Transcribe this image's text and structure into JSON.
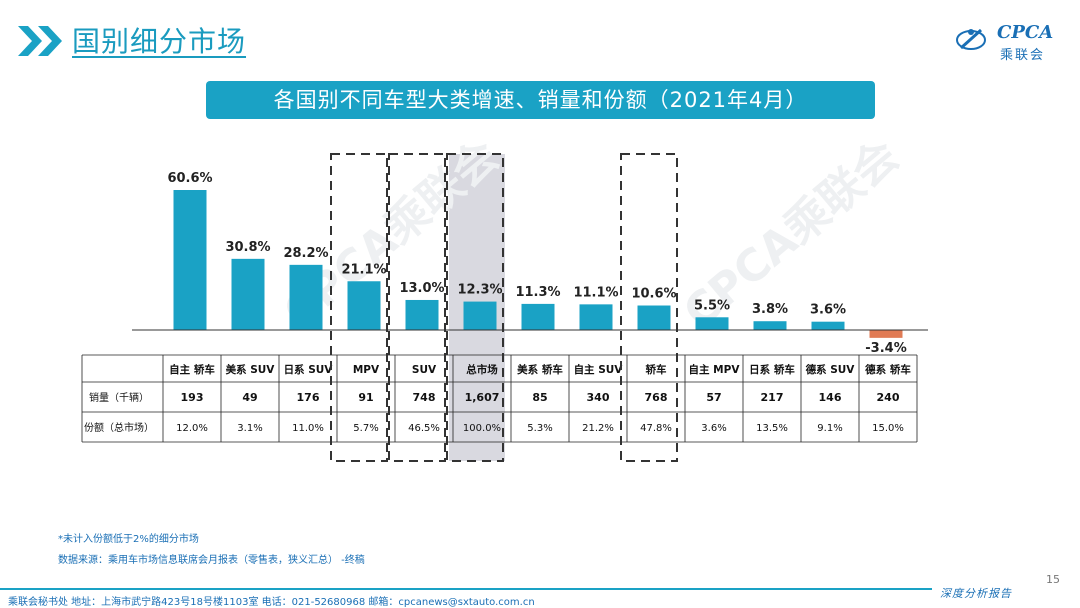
{
  "header": {
    "title": "国别细分市场",
    "logo_text": "CPCA",
    "logo_sub": "乘联会"
  },
  "banner": {
    "title": "各国别不同车型大类增速、销量和份额（2021年4月）"
  },
  "colors": {
    "accent": "#1aa2c5",
    "bar_positive": "#1aa2c5",
    "bar_negative": "#e07b55",
    "highlight": "#d9d9e0"
  },
  "watermark": "CPCA乘联会",
  "chart_data": {
    "type": "bar",
    "title": "各国别不同车型大类增速、销量和份额（2021年4月）",
    "categories": [
      "自主 轿车",
      "美系 SUV",
      "日系 SUV",
      "MPV",
      "SUV",
      "总市场",
      "美系 轿车",
      "自主 SUV",
      "轿车",
      "自主 MPV",
      "日系 轿车",
      "德系 SUV",
      "德系 轿车"
    ],
    "values": [
      60.6,
      30.8,
      28.2,
      21.1,
      13.0,
      12.3,
      11.3,
      11.1,
      10.6,
      5.5,
      3.8,
      3.6,
      -3.4
    ],
    "value_labels": [
      "60.6%",
      "30.8%",
      "28.2%",
      "21.1%",
      "13.0%",
      "12.3%",
      "11.3%",
      "11.1%",
      "10.6%",
      "5.5%",
      "3.8%",
      "3.6%",
      "-3.4%"
    ],
    "highlighted": [
      "MPV",
      "SUV",
      "总市场",
      "轿车"
    ],
    "shaded": [
      "总市场"
    ],
    "ylim": [
      -5,
      65
    ],
    "table": {
      "rows": [
        {
          "label": "销量（千辆）",
          "values": [
            "193",
            "49",
            "176",
            "91",
            "748",
            "1,607",
            "85",
            "340",
            "768",
            "57",
            "217",
            "146",
            "240"
          ]
        },
        {
          "label": "份额（总市场）",
          "values": [
            "12.0%",
            "3.1%",
            "11.0%",
            "5.7%",
            "46.5%",
            "100.0%",
            "5.3%",
            "21.2%",
            "47.8%",
            "3.6%",
            "13.5%",
            "9.1%",
            "15.0%"
          ]
        }
      ]
    }
  },
  "footnotes": {
    "note": "*未计入份额低于2%的细分市场",
    "source": "数据来源：乘用车市场信息联席会月报表（零售表，狭义汇总） -终稿"
  },
  "footer": {
    "contact": "乘联会秘书处   地址：上海市武宁路423号18号楼1103室   电话：021-52680968   邮箱：cpcanews@sxtauto.com.cn",
    "report": "深度分析报告",
    "page": "15"
  }
}
